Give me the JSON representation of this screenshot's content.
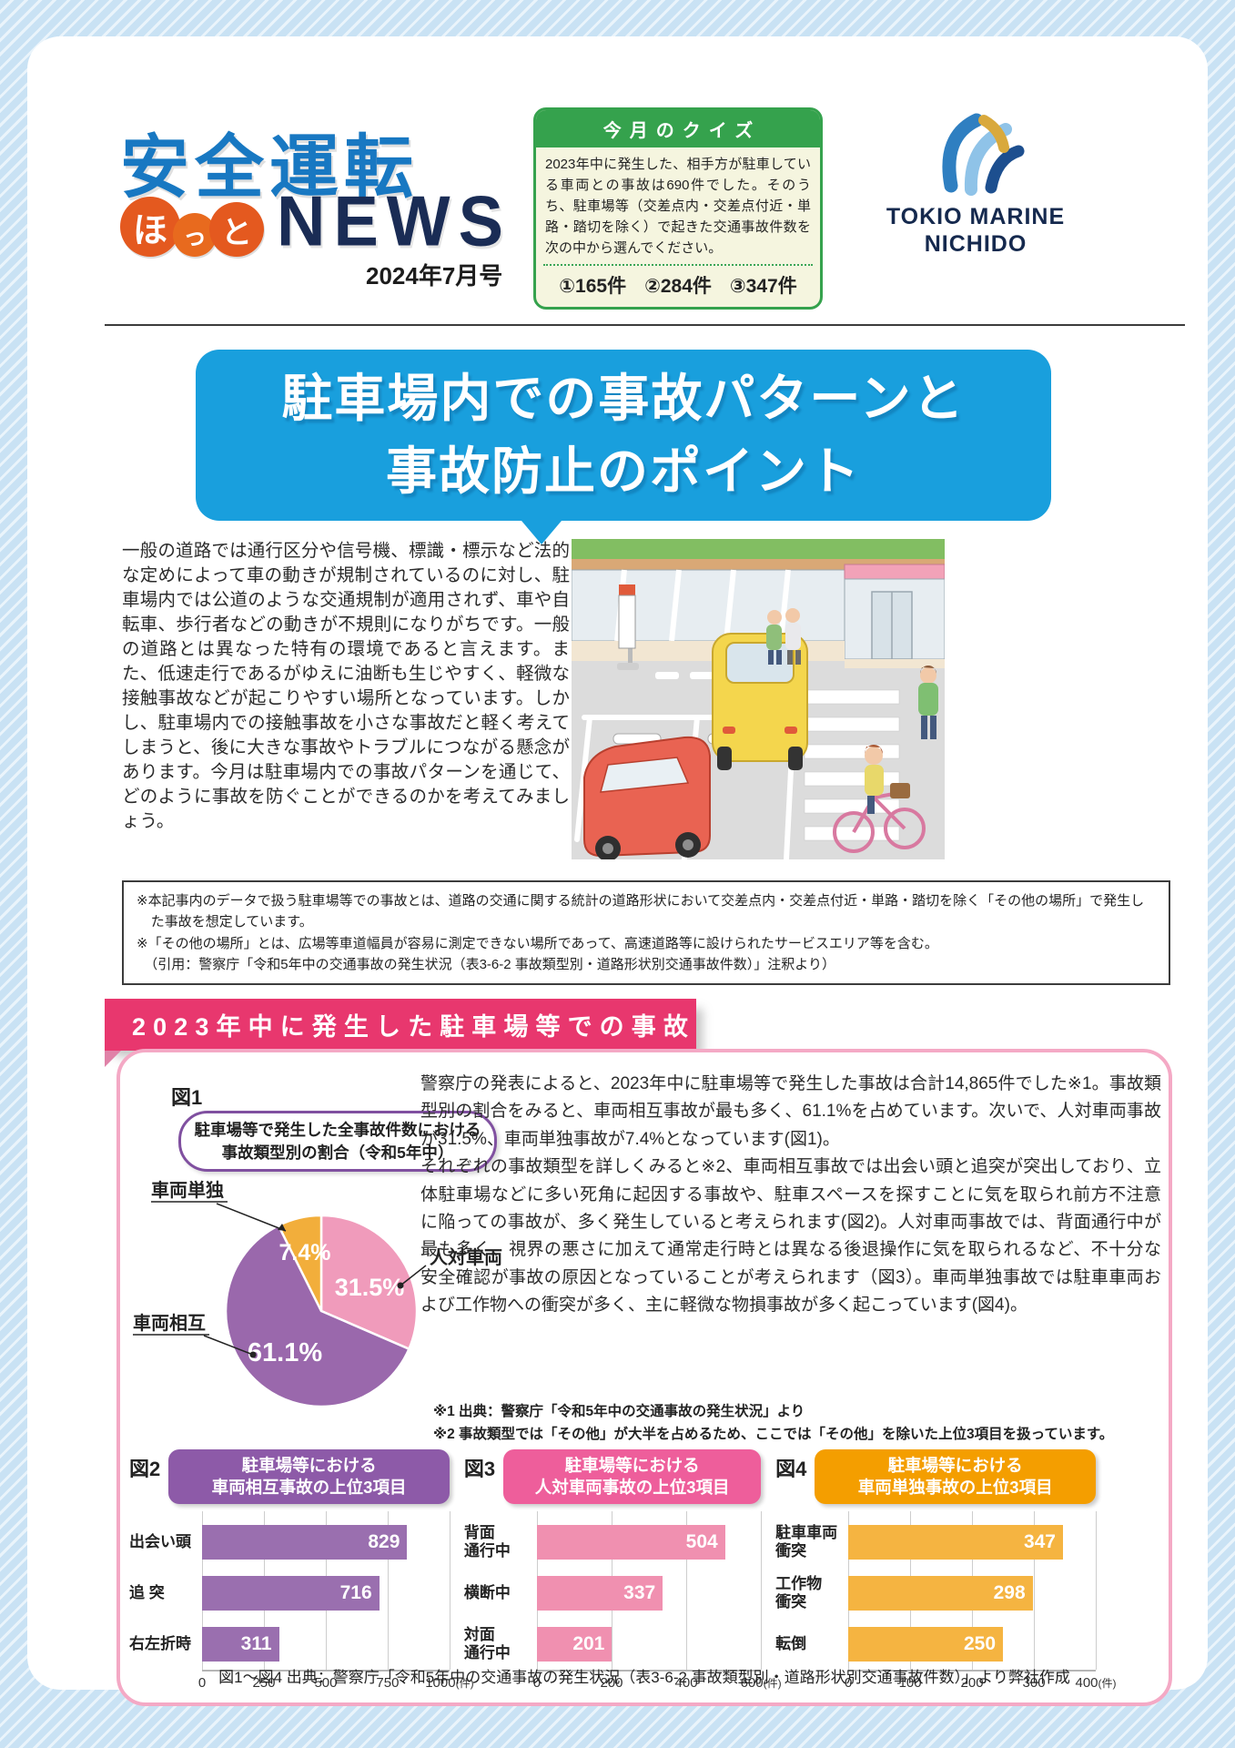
{
  "header": {
    "logo_top": "安全運転",
    "logo_hotto": [
      "ほ",
      "っ",
      "と"
    ],
    "logo_news": "NEWS",
    "issue": "2024年7月号"
  },
  "quiz": {
    "title": "今月のクイズ",
    "body": "2023年中に発生した、相手方が駐車している車両との事故は690件でした。そのうち、駐車場等（交差点内・交差点付近・単路・踏切を除く）で起きた交通事故件数を次の中から選んでください。",
    "options": [
      "①165件",
      "②284件",
      "③347件"
    ]
  },
  "brand": {
    "line1": "TOKIO MARINE",
    "line2": "NICHIDO"
  },
  "banner": {
    "line1": "駐車場内での事故パターンと",
    "line2": "事故防止のポイント"
  },
  "intro": "一般の道路では通行区分や信号機、標識・標示など法的な定めによって車の動きが規制されているのに対し、駐車場内では公道のような交通規制が適用されず、車や自転車、歩行者などの動きが不規則になりがちです。一般の道路とは異なった特有の環境であると言えます。また、低速走行であるがゆえに油断も生じやすく、軽微な接触事故などが起こりやすい場所となっています。しかし、駐車場内での接触事故を小さな事故だと軽く考えてしまうと、後に大きな事故やトラブルにつながる懸念があります。今月は駐車場内での事故パターンを通じて、どのように事故を防ぐことができるのかを考えてみましょう。",
  "notes": [
    "※本記事内のデータで扱う駐車場等での事故とは、道路の交通に関する統計の道路形状において交差点内・交差点付近・単路・踏切を除く「その他の場所」で発生した事故を想定しています。",
    "※「その他の場所」とは、広場等車道幅員が容易に測定できない場所であって、高速道路等に設けられたサービスエリア等を含む。",
    "（引用：警察庁「令和5年中の交通事故の発生状況（表3-6-2 事故類型別・道路形状別交通事故件数）」注釈より）"
  ],
  "section": {
    "title": "2023年中に発生した駐車場等での事故"
  },
  "stats": {
    "p1": "警察庁の発表によると、2023年中に駐車場等で発生した事故は合計14,865件でした※1。事故類型別の割合をみると、車両相互事故が最も多く、61.1%を占めています。次いで、人対車両事故が31.5%、車両単独事故が7.4%となっています(図1)。",
    "p2": "それぞれの事故類型を詳しくみると※2、車両相互事故では出会い頭と追突が突出しており、立体駐車場などに多い死角に起因する事故や、駐車スペースを探すことに気を取られ前方不注意に陥っての事故が、多く発生していると考えられます(図2)。人対車両事故では、背面通行中が最も多く、視界の悪さに加えて通常走行時とは異なる後退操作に気を取られるなど、不十分な安全確認が事故の原因となっていることが考えられます（図3）。車両単独事故では駐車車両および工作物への衝突が多く、主に軽微な物損事故が多く起こっています(図4)。",
    "note1": "※1 出典：警察庁「令和5年中の交通事故の発生状況」より",
    "note2": "※2 事故類型では「その他」が大半を占めるため、ここでは「その他」を除いた上位3項目を扱っています。"
  },
  "charts_caption": "図1～図4 出典：警察庁「令和5年中の交通事故の発生状況（表3-6-2 事故類型別・道路形状別交通事故件数）」より弊社作成",
  "colors": {
    "header_blue": "#1878C2",
    "news_navy": "#1A2C55",
    "hotto_orange": "#E4591F",
    "quiz_green": "#35A24D",
    "banner_blue": "#199FDD",
    "section_pink": "#E8376E",
    "charts_border_pink": "#F4A9C5",
    "pie_purple": "#9A68AC",
    "pie_pink": "#F09BBB",
    "pie_orange": "#F2AE3B"
  },
  "chart_data": [
    {
      "type": "pie",
      "figure": "図1",
      "title_line1": "駐車場等で発生した全事故件数における",
      "title_line2": "事故類型別の割合（令和5年中）",
      "labels": [
        "車両相互",
        "人対車両",
        "車両単独"
      ],
      "values": [
        61.1,
        31.5,
        7.4
      ],
      "value_labels": [
        "61.1%",
        "31.5%",
        "7.4%"
      ],
      "unit": "%",
      "colors": [
        "#9A68AC",
        "#F09BBB",
        "#F2AE3B"
      ],
      "start_angle": "12時方向",
      "direction": "clockwise",
      "legend_position": "callout-labels"
    },
    {
      "type": "bar",
      "figure": "図2",
      "title_line1": "駐車場等における",
      "title_line2": "車両相互事故の上位3項目",
      "categories": [
        "出会い頭",
        "追 突",
        "右左折時"
      ],
      "values": [
        829,
        716,
        311
      ],
      "xmax": 1000,
      "ticks": [
        0,
        250,
        500,
        750,
        1000
      ],
      "unit": "(件)",
      "bar_color": "#9A6FAF",
      "header_color": "#8D5AA8",
      "orientation": "horizontal",
      "grid": true
    },
    {
      "type": "bar",
      "figure": "図3",
      "title_line1": "駐車場等における",
      "title_line2": "人対車両事故の上位3項目",
      "categories": [
        "背面\n通行中",
        "横断中",
        "対面\n通行中"
      ],
      "values": [
        504,
        337,
        201
      ],
      "xmax": 600,
      "ticks": [
        0,
        200,
        400,
        600
      ],
      "unit": "(件)",
      "bar_color": "#F090B0",
      "header_color": "#EE5E9B",
      "orientation": "horizontal",
      "grid": true
    },
    {
      "type": "bar",
      "figure": "図4",
      "title_line1": "駐車場等における",
      "title_line2": "車両単独事故の上位3項目",
      "categories": [
        "駐車車両\n衝突",
        "工作物\n衝突",
        "転倒"
      ],
      "values": [
        347,
        298,
        250
      ],
      "xmax": 400,
      "ticks": [
        0,
        100,
        200,
        300,
        400
      ],
      "unit": "(件)",
      "bar_color": "#F5B441",
      "header_color": "#F49E00",
      "orientation": "horizontal",
      "grid": true
    }
  ]
}
